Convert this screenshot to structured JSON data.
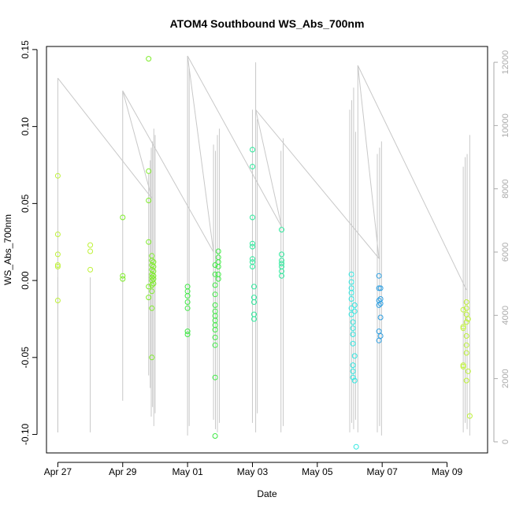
{
  "chart_data": {
    "type": "scatter",
    "title": "ATOM4 Southbound WS_Abs_700nm",
    "xlabel": "Date",
    "ylabel": "WS_Abs_700nm",
    "x_ticks": [
      "Apr 27",
      "Apr 29",
      "May 01",
      "May 03",
      "May 05",
      "May 07",
      "May 09"
    ],
    "x_tick_days": [
      27,
      29,
      31,
      33,
      35,
      37,
      39
    ],
    "xlim": [
      26.65,
      40.25
    ],
    "y_ticks": [
      -0.1,
      -0.05,
      0.0,
      0.05,
      0.1,
      0.15
    ],
    "y_tick_labels": [
      "-0.10",
      "-0.05",
      "0.00",
      "0.05",
      "0.10",
      "0.15"
    ],
    "ylim": [
      -0.112,
      0.152
    ],
    "y2_ticks": [
      0,
      2000,
      4000,
      6000,
      8000,
      10000,
      12000
    ],
    "y2_tick_labels": [
      "0",
      "2000",
      "4000",
      "6000",
      "8000",
      "10000",
      "12000"
    ],
    "y2lim": [
      -350,
      12500
    ],
    "grid": false,
    "legend": "none",
    "colors": {
      "line": "#c8c8c8",
      "axis": "#000000",
      "right_axis": "#aaaaaa",
      "palette": [
        "#bff23a",
        "#7eec2a",
        "#3fe845",
        "#2ee89c",
        "#31e8e2",
        "#2ea0e3"
      ]
    },
    "series": [
      {
        "values": [
          [
            27.0,
            0.068
          ],
          [
            27.0,
            0.03
          ],
          [
            27.0,
            0.017
          ],
          [
            27.0,
            0.01
          ],
          [
            27.0,
            0.009
          ],
          [
            27.0,
            -0.013
          ],
          [
            28.0,
            0.023
          ],
          [
            28.0,
            0.019
          ],
          [
            28.0,
            0.007
          ]
        ]
      },
      {
        "values": [
          [
            29.0,
            0.041
          ],
          [
            29.0,
            0.003
          ],
          [
            29.0,
            0.001
          ],
          [
            29.8,
            0.144
          ],
          [
            29.8,
            0.071
          ],
          [
            29.8,
            0.052
          ],
          [
            29.8,
            0.025
          ],
          [
            29.8,
            -0.004
          ],
          [
            29.8,
            -0.011
          ],
          [
            29.9,
            0.016
          ],
          [
            29.9,
            0.013
          ],
          [
            29.9,
            0.01
          ],
          [
            29.9,
            0.007
          ],
          [
            29.9,
            0.004
          ],
          [
            29.9,
            0.002
          ],
          [
            29.9,
            0.0
          ],
          [
            29.9,
            -0.003
          ],
          [
            29.9,
            -0.007
          ],
          [
            29.9,
            -0.018
          ],
          [
            29.9,
            -0.05
          ],
          [
            29.95,
            0.012
          ],
          [
            29.95,
            0.009
          ],
          [
            29.95,
            0.006
          ],
          [
            29.95,
            0.003
          ],
          [
            29.95,
            0.001
          ],
          [
            29.95,
            -0.002
          ]
        ]
      },
      {
        "values": [
          [
            31.0,
            -0.004
          ],
          [
            31.0,
            -0.007
          ],
          [
            31.0,
            -0.01
          ],
          [
            31.0,
            -0.014
          ],
          [
            31.0,
            -0.018
          ],
          [
            31.0,
            -0.033
          ],
          [
            31.0,
            -0.035
          ],
          [
            31.85,
            0.01
          ],
          [
            31.85,
            0.004
          ],
          [
            31.85,
            -0.003
          ],
          [
            31.85,
            -0.009
          ],
          [
            31.85,
            -0.016
          ],
          [
            31.85,
            -0.02
          ],
          [
            31.85,
            -0.023
          ],
          [
            31.85,
            -0.026
          ],
          [
            31.85,
            -0.029
          ],
          [
            31.85,
            -0.032
          ],
          [
            31.85,
            -0.037
          ],
          [
            31.85,
            -0.042
          ],
          [
            31.85,
            -0.063
          ],
          [
            31.85,
            -0.101
          ],
          [
            31.95,
            0.019
          ],
          [
            31.95,
            0.015
          ],
          [
            31.95,
            0.012
          ],
          [
            31.95,
            0.009
          ],
          [
            31.95,
            0.004
          ],
          [
            31.95,
            0.001
          ]
        ]
      },
      {
        "values": [
          [
            33.0,
            0.085
          ],
          [
            33.0,
            0.074
          ],
          [
            33.0,
            0.041
          ],
          [
            33.0,
            0.024
          ],
          [
            33.0,
            0.022
          ],
          [
            33.0,
            0.014
          ],
          [
            33.0,
            0.012
          ],
          [
            33.0,
            0.009
          ],
          [
            33.05,
            -0.004
          ],
          [
            33.05,
            -0.011
          ],
          [
            33.05,
            -0.014
          ],
          [
            33.05,
            -0.022
          ],
          [
            33.05,
            -0.025
          ],
          [
            33.9,
            0.033
          ],
          [
            33.9,
            0.017
          ],
          [
            33.9,
            0.013
          ],
          [
            33.9,
            0.011
          ],
          [
            33.9,
            0.009
          ],
          [
            33.9,
            0.006
          ],
          [
            33.9,
            0.003
          ]
        ]
      },
      {
        "values": [
          [
            36.05,
            0.004
          ],
          [
            36.05,
            -0.001
          ],
          [
            36.05,
            -0.005
          ],
          [
            36.05,
            -0.008
          ],
          [
            36.05,
            -0.012
          ],
          [
            36.05,
            -0.018
          ],
          [
            36.05,
            -0.022
          ],
          [
            36.1,
            -0.027
          ],
          [
            36.1,
            -0.031
          ],
          [
            36.1,
            -0.035
          ],
          [
            36.1,
            -0.041
          ],
          [
            36.1,
            -0.055
          ],
          [
            36.1,
            -0.059
          ],
          [
            36.1,
            -0.063
          ],
          [
            36.15,
            -0.016
          ],
          [
            36.15,
            -0.02
          ],
          [
            36.15,
            -0.049
          ],
          [
            36.15,
            -0.065
          ],
          [
            36.2,
            -0.108
          ]
        ]
      },
      {
        "values": [
          [
            36.9,
            0.003
          ],
          [
            36.9,
            -0.005
          ],
          [
            36.9,
            -0.013
          ],
          [
            36.9,
            -0.016
          ],
          [
            36.9,
            -0.039
          ],
          [
            36.9,
            -0.033
          ],
          [
            36.95,
            -0.005
          ],
          [
            36.95,
            -0.012
          ],
          [
            36.95,
            -0.015
          ],
          [
            36.95,
            -0.024
          ],
          [
            36.95,
            -0.036
          ]
        ]
      },
      {
        "values": [
          [
            39.5,
            -0.019
          ],
          [
            39.5,
            -0.03
          ],
          [
            39.5,
            -0.031
          ],
          [
            39.5,
            -0.055
          ],
          [
            39.5,
            -0.056
          ],
          [
            39.6,
            -0.014
          ],
          [
            39.6,
            -0.018
          ],
          [
            39.6,
            -0.022
          ],
          [
            39.6,
            -0.027
          ],
          [
            39.6,
            -0.036
          ],
          [
            39.6,
            -0.042
          ],
          [
            39.6,
            -0.047
          ],
          [
            39.6,
            -0.065
          ],
          [
            39.65,
            -0.025
          ],
          [
            39.65,
            -0.059
          ],
          [
            39.7,
            -0.088
          ]
        ]
      }
    ],
    "secondary_line": {
      "axis": "right",
      "values": [
        [
          27.0,
          11500
        ],
        [
          29.9,
          7700
        ],
        [
          29.0,
          11100
        ],
        [
          31.8,
          6000
        ],
        [
          31.0,
          12200
        ],
        [
          33.9,
          6800
        ],
        [
          33.1,
          10500
        ],
        [
          36.9,
          5800
        ],
        [
          36.25,
          11900
        ],
        [
          39.6,
          4800
        ]
      ],
      "spikes": [
        {
          "day": 27.0,
          "low": 300,
          "high": 11500
        },
        {
          "day": 27.0,
          "low": 300,
          "high": 5200
        },
        {
          "day": 28.0,
          "low": 300,
          "high": 5200
        },
        {
          "day": 29.0,
          "low": 1300,
          "high": 11100
        },
        {
          "day": 29.8,
          "low": 2100,
          "high": 8500
        },
        {
          "day": 29.85,
          "low": 1700,
          "high": 8900
        },
        {
          "day": 29.88,
          "low": 800,
          "high": 9300
        },
        {
          "day": 29.92,
          "low": 1100,
          "high": 9500
        },
        {
          "day": 29.96,
          "low": 500,
          "high": 9900
        },
        {
          "day": 30.0,
          "low": 900,
          "high": 9700
        },
        {
          "day": 31.0,
          "low": 200,
          "high": 12200
        },
        {
          "day": 31.05,
          "low": 500,
          "high": 11800
        },
        {
          "day": 31.8,
          "low": 700,
          "high": 9400
        },
        {
          "day": 31.86,
          "low": 400,
          "high": 9200
        },
        {
          "day": 31.92,
          "low": 300,
          "high": 9700
        },
        {
          "day": 31.98,
          "low": 600,
          "high": 9900
        },
        {
          "day": 33.0,
          "low": 600,
          "high": 10500
        },
        {
          "day": 33.1,
          "low": 300,
          "high": 12000
        },
        {
          "day": 33.15,
          "low": 900,
          "high": 10200
        },
        {
          "day": 33.88,
          "low": 300,
          "high": 9200
        },
        {
          "day": 33.95,
          "low": 500,
          "high": 9600
        },
        {
          "day": 36.0,
          "low": 300,
          "high": 10500
        },
        {
          "day": 36.06,
          "low": 600,
          "high": 10800
        },
        {
          "day": 36.12,
          "low": 400,
          "high": 11200
        },
        {
          "day": 36.18,
          "low": 700,
          "high": 9800
        },
        {
          "day": 36.25,
          "low": 300,
          "high": 11900
        },
        {
          "day": 36.85,
          "low": 300,
          "high": 9100
        },
        {
          "day": 36.92,
          "low": 500,
          "high": 9300
        },
        {
          "day": 36.98,
          "low": 200,
          "high": 9500
        },
        {
          "day": 39.5,
          "low": 300,
          "high": 8700
        },
        {
          "day": 39.56,
          "low": 600,
          "high": 9000
        },
        {
          "day": 39.62,
          "low": 400,
          "high": 9100
        },
        {
          "day": 39.7,
          "low": 200,
          "high": 9700
        }
      ]
    }
  }
}
